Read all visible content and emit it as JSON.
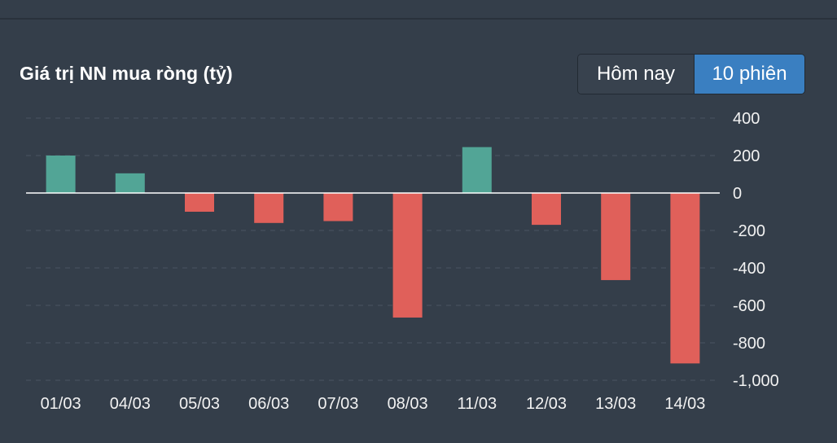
{
  "header": {
    "title": "Giá trị NN mua ròng (tỷ)"
  },
  "toggle": {
    "today_label": "Hôm nay",
    "ten_sessions_label": "10 phiên",
    "selected": "10 phiên"
  },
  "chart_data": {
    "type": "bar",
    "title": "Giá trị NN mua ròng (tỷ)",
    "categories": [
      "01/03",
      "04/03",
      "05/03",
      "06/03",
      "07/03",
      "08/03",
      "11/03",
      "12/03",
      "13/03",
      "14/03"
    ],
    "values": [
      200,
      105,
      -100,
      -160,
      -150,
      -665,
      245,
      -170,
      -465,
      -910
    ],
    "ylim": [
      -1000,
      400
    ],
    "yticks": [
      400,
      200,
      0,
      -200,
      -400,
      -600,
      -800,
      -1000
    ],
    "ytick_labels": [
      "400",
      "200",
      "0",
      "-200",
      "-400",
      "-600",
      "-800",
      "-1,000"
    ],
    "y_axis_side": "right",
    "grid": true,
    "colors": {
      "positive": "#52a596",
      "negative": "#e0605a",
      "zero_line": "#ffffff",
      "grid": "#4a5461"
    }
  }
}
